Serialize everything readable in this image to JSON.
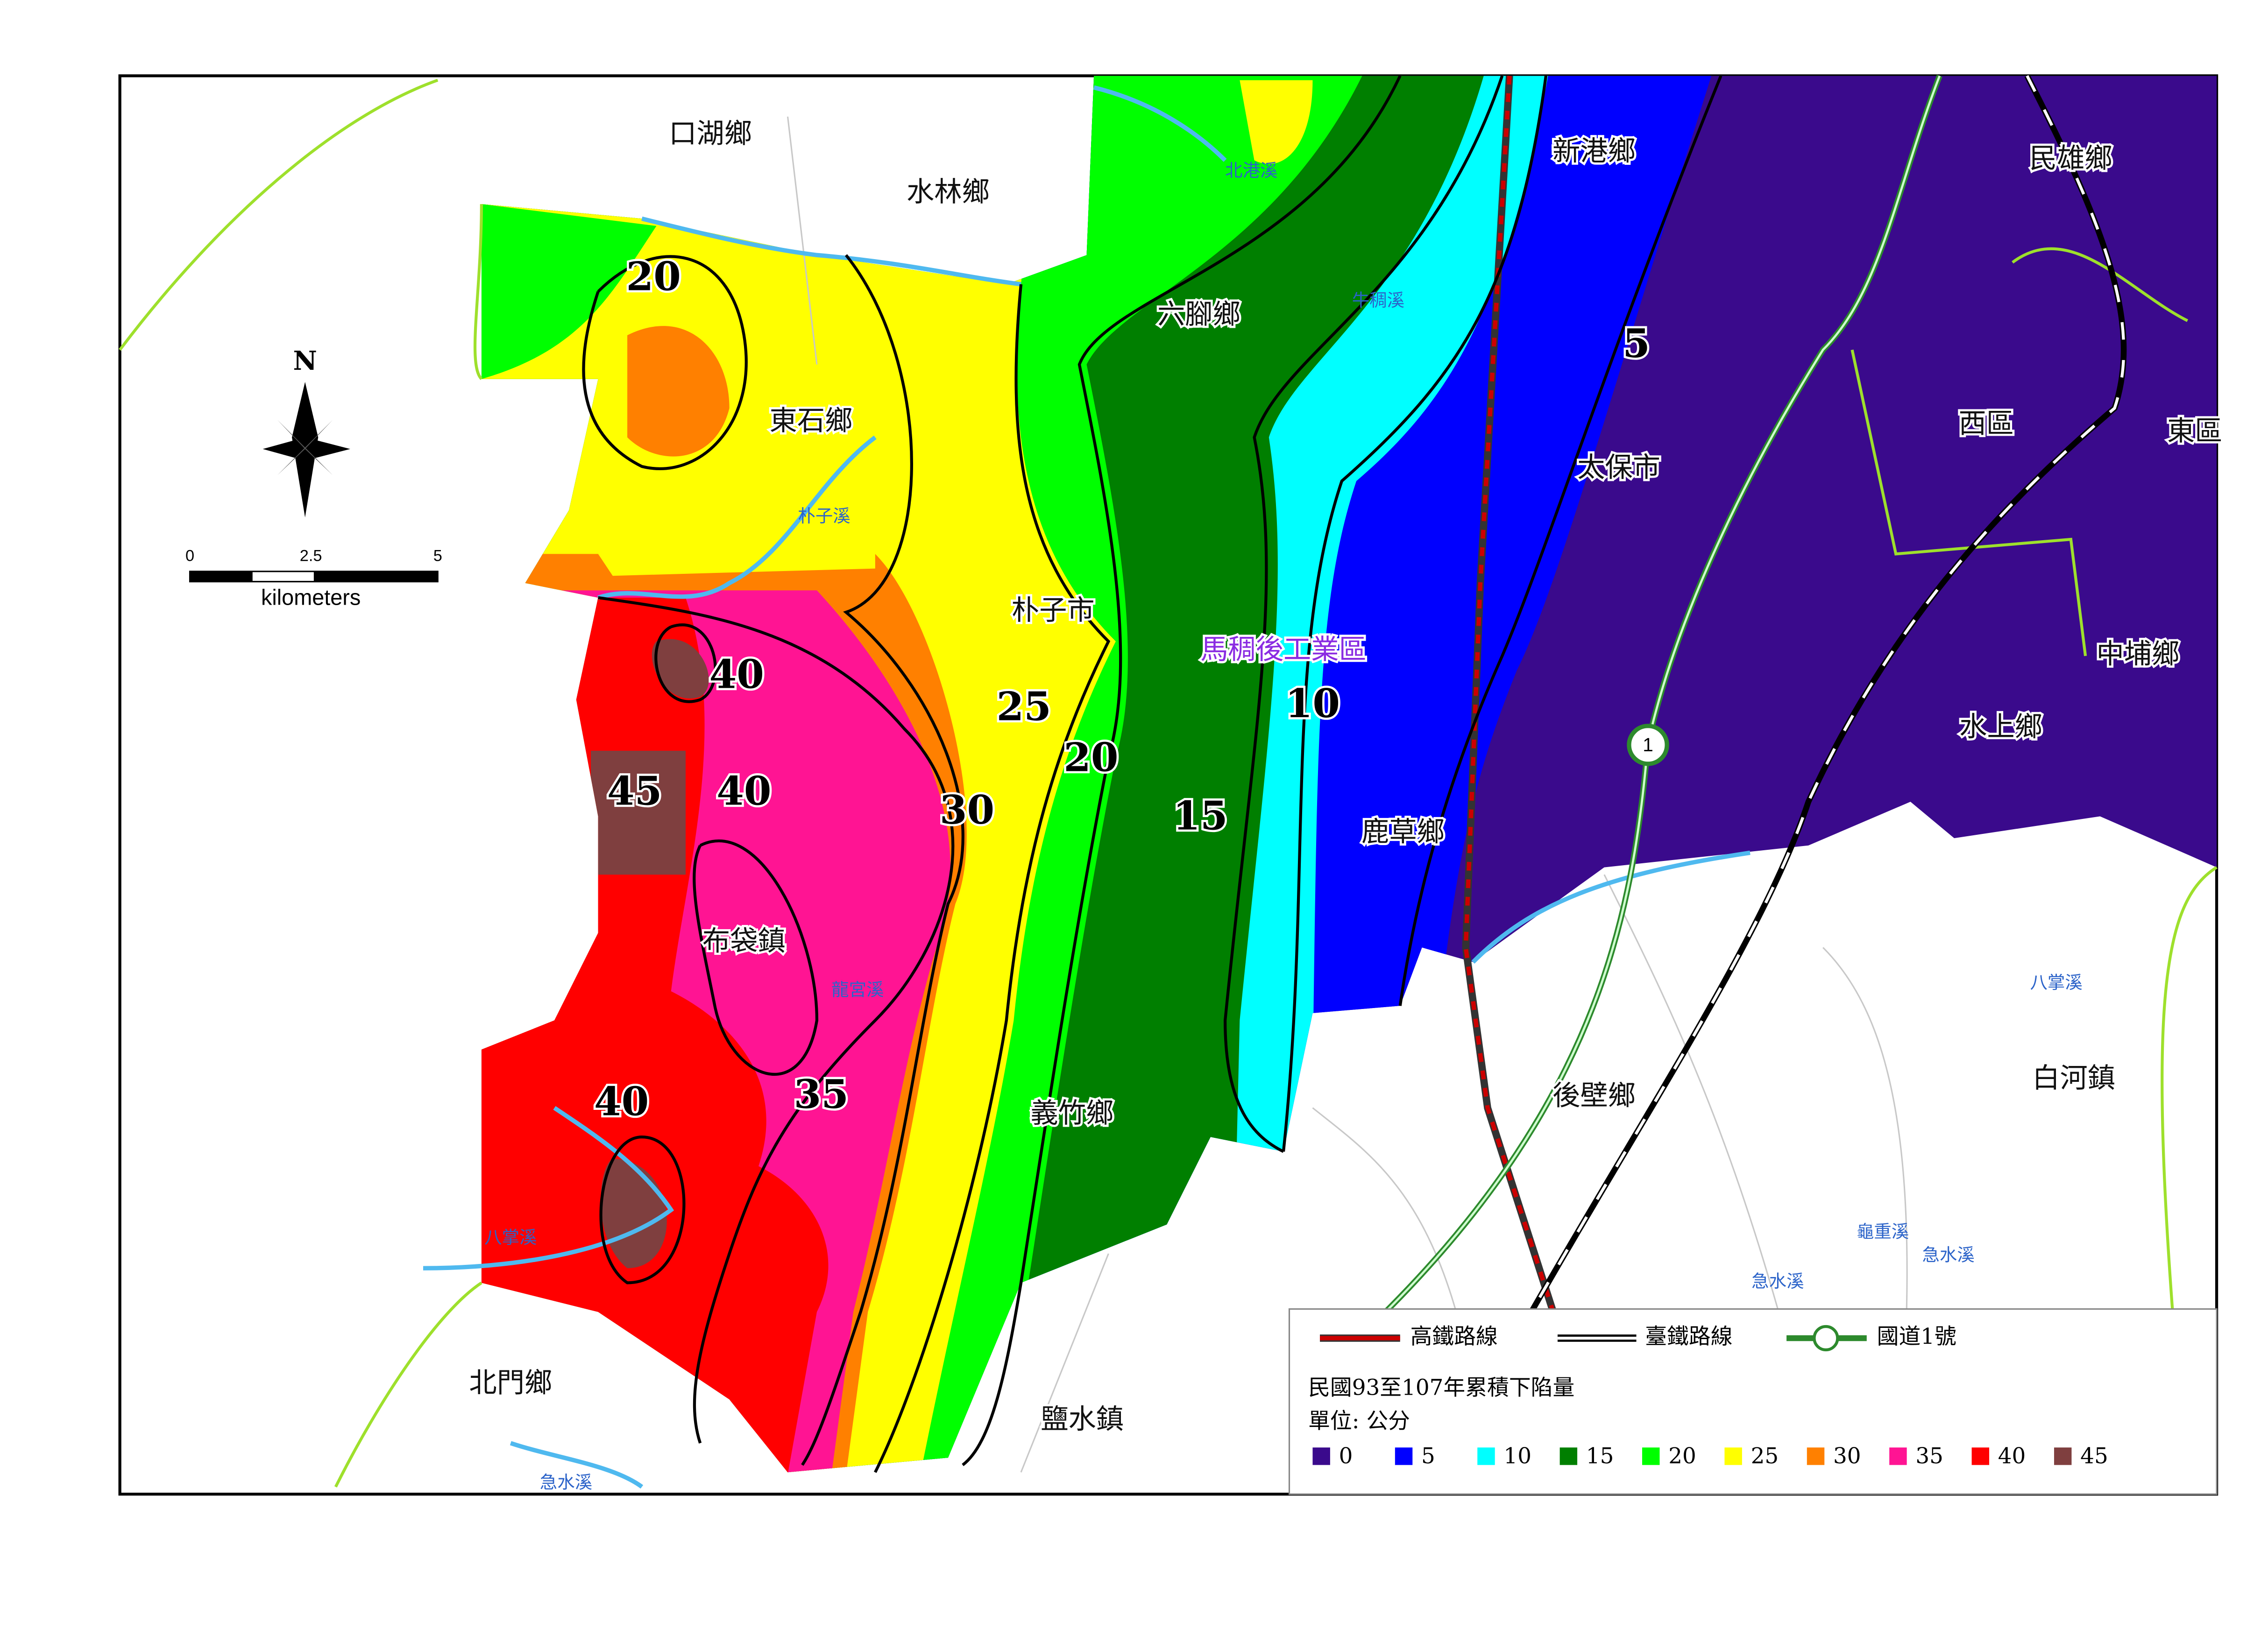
{
  "map": {
    "north_label": "N",
    "scale_bar": {
      "ticks": [
        "0",
        "2.5",
        "5"
      ],
      "unit": "kilometers"
    },
    "places": [
      "口湖鄉",
      "水林鄉",
      "新港鄉",
      "民雄鄉",
      "六腳鄉",
      "東石鄉",
      "太保市",
      "西區",
      "東區",
      "朴子市",
      "馬稠後工業區",
      "中埔鄉",
      "水上鄉",
      "鹿草鄉",
      "布袋鎮",
      "義竹鄉",
      "後壁鄉",
      "白河鎮",
      "北門鄉",
      "鹽水鎮"
    ],
    "rivers": [
      "北港溪",
      "牛稠溪",
      "朴子溪",
      "龍宮溪",
      "八掌溪",
      "急水溪",
      "八掌溪",
      "龜重溪",
      "急水溪",
      "急水溪"
    ],
    "contour_labels": [
      20,
      5,
      40,
      45,
      40,
      25,
      10,
      20,
      30,
      15,
      40,
      35
    ],
    "highway_shield": "1",
    "legend": {
      "lines": [
        "高鐵路線",
        "臺鐵路線",
        "國道1號"
      ],
      "title": "民國93至107年累積下陷量",
      "unit_label": "單位: 公分",
      "classes": [
        {
          "value": 0,
          "color": "#3a0a8c"
        },
        {
          "value": 5,
          "color": "#0000ff"
        },
        {
          "value": 10,
          "color": "#00ffff"
        },
        {
          "value": 15,
          "color": "#007f00"
        },
        {
          "value": 20,
          "color": "#00ff00"
        },
        {
          "value": 25,
          "color": "#ffff00"
        },
        {
          "value": 30,
          "color": "#ff8000"
        },
        {
          "value": 35,
          "color": "#ff1493"
        },
        {
          "value": 40,
          "color": "#ff0000"
        },
        {
          "value": 45,
          "color": "#7f3f3f"
        }
      ]
    }
  }
}
